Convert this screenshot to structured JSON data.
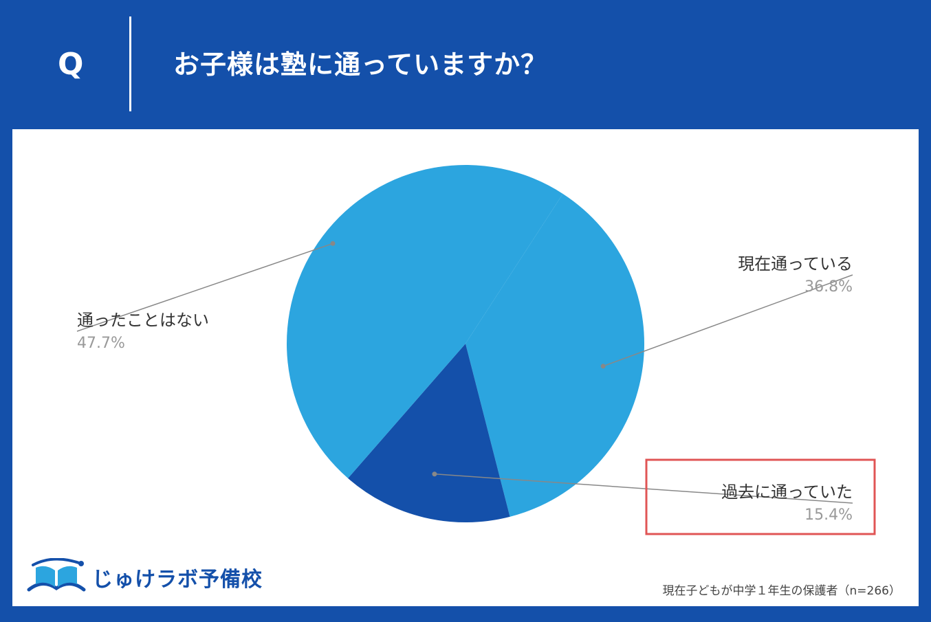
{
  "header": {
    "q_mark": "Q",
    "question": "お子様は塾に通っていますか？"
  },
  "colors": {
    "background": "#1450aa",
    "slice_light": "#2ca5df",
    "slice_dark": "#1450aa",
    "highlight": "#e05555"
  },
  "chart_data": {
    "type": "pie",
    "title": "お子様は塾に通っていますか？",
    "slices": [
      {
        "label": "現在通っている",
        "value_text": "36.8%",
        "value": 36.8,
        "color": "#2ca5df"
      },
      {
        "label": "過去に通っていた",
        "value_text": "15.4%",
        "value": 15.4,
        "color": "#1450aa",
        "highlighted": true
      },
      {
        "label": "通ったことはない",
        "value_text": "47.7%",
        "value": 47.7,
        "color": "#2ca5df"
      }
    ]
  },
  "logo": {
    "text": "じゅけラボ予備校",
    "icon": "open-book-icon"
  },
  "footnote": "現在子どもが中学１年生の保護者（n=266）"
}
